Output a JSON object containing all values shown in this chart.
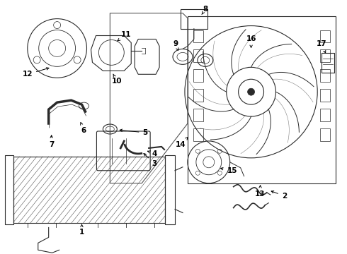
{
  "background_color": "#ffffff",
  "line_color": "#2a2a2a",
  "fig_w": 4.9,
  "fig_h": 3.6,
  "dpi": 100
}
